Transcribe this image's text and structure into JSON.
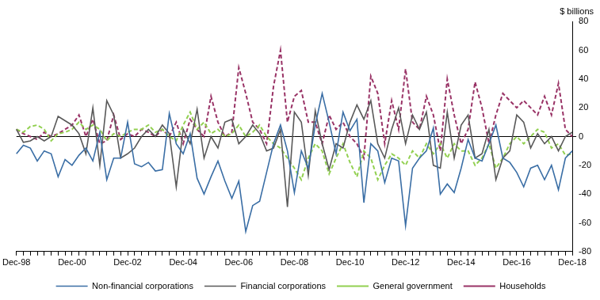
{
  "chart_data": {
    "type": "line",
    "y_label": "$ billions",
    "categories": [
      "Dec-98",
      null,
      null,
      null,
      null,
      null,
      null,
      null,
      "Dec-00",
      null,
      null,
      null,
      null,
      null,
      null,
      null,
      "Dec-02",
      null,
      null,
      null,
      null,
      null,
      null,
      null,
      "Dec-04",
      null,
      null,
      null,
      null,
      null,
      null,
      null,
      "Dec-06",
      null,
      null,
      null,
      null,
      null,
      null,
      null,
      "Dec-08",
      null,
      null,
      null,
      null,
      null,
      null,
      null,
      "Dec-10",
      null,
      null,
      null,
      null,
      null,
      null,
      null,
      "Dec-12",
      null,
      null,
      null,
      null,
      null,
      null,
      null,
      "Dec-14",
      null,
      null,
      null,
      null,
      null,
      null,
      null,
      "Dec-16",
      null,
      null,
      null,
      null,
      null,
      null,
      null,
      "Dec-18"
    ],
    "series": [
      {
        "name": "Non-financial corporations",
        "color": "#3a6ea5",
        "line_style": "solid",
        "values": [
          -12,
          -6,
          -8,
          -17,
          -10,
          -12,
          -28,
          -16,
          -20,
          -13,
          -8,
          -17,
          3,
          -30,
          -15,
          -15,
          10,
          -19,
          -21,
          -18,
          -24,
          -23,
          16,
          -5,
          -12,
          2,
          -29,
          -40,
          -28,
          -17,
          -31,
          -43,
          -31,
          -66,
          -48,
          -45,
          -25,
          -5,
          8,
          -10,
          -39,
          -10,
          -22,
          8,
          30,
          10,
          -12,
          17,
          4,
          12,
          -46,
          -5,
          -10,
          -32,
          -15,
          -17,
          -62,
          -22,
          -15,
          -10,
          6,
          -40,
          -33,
          -39,
          -22,
          -2,
          -15,
          -17,
          -5,
          8,
          -15,
          -18,
          -25,
          -35,
          -22,
          -20,
          -30,
          -20,
          -37,
          -15,
          -10
        ]
      },
      {
        "name": "Financial corporations",
        "color": "#595959",
        "line_style": "solid",
        "values": [
          5,
          -4,
          -3,
          0,
          -3,
          0,
          14,
          11,
          8,
          2,
          -12,
          20,
          -20,
          25,
          15,
          -15,
          -12,
          -8,
          0,
          5,
          0,
          8,
          2,
          -35,
          5,
          -5,
          19,
          -15,
          0,
          -8,
          10,
          12,
          -5,
          0,
          8,
          2,
          -10,
          -8,
          5,
          -49,
          17,
          10,
          -27,
          18,
          -5,
          -23,
          -5,
          -8,
          10,
          22,
          12,
          25,
          -5,
          -15,
          5,
          20,
          -5,
          15,
          5,
          17,
          -20,
          -22,
          17,
          -15,
          8,
          15,
          -15,
          -12,
          5,
          -30,
          -15,
          -10,
          15,
          10,
          -8,
          2,
          -5,
          0,
          -10,
          0,
          3
        ]
      },
      {
        "name": "General government",
        "color": "#92d050",
        "line_style": "dashed",
        "values": [
          5,
          3,
          7,
          8,
          5,
          -3,
          2,
          3,
          5,
          10,
          5,
          8,
          5,
          -3,
          2,
          0,
          3,
          5,
          5,
          8,
          3,
          5,
          0,
          -3,
          8,
          17,
          5,
          10,
          2,
          5,
          0,
          2,
          8,
          0,
          3,
          8,
          0,
          -5,
          -8,
          -15,
          -22,
          -30,
          -15,
          -5,
          -10,
          -26,
          -15,
          -5,
          -18,
          -28,
          -10,
          -15,
          -30,
          -20,
          -12,
          -15,
          -20,
          -10,
          -15,
          -5,
          -12,
          -5,
          -15,
          -5,
          -10,
          -10,
          -20,
          -15,
          -5,
          -22,
          -15,
          -5,
          0,
          -5,
          0,
          5,
          3,
          -8,
          -5,
          -13,
          -12
        ]
      },
      {
        "name": "Households",
        "color": "#993366",
        "line_style": "dashed",
        "values": [
          5,
          2,
          0,
          -2,
          3,
          0,
          2,
          5,
          8,
          15,
          0,
          12,
          -5,
          -3,
          15,
          -2,
          2,
          0,
          5,
          3,
          0,
          5,
          0,
          10,
          -5,
          12,
          5,
          0,
          28,
          10,
          0,
          3,
          48,
          30,
          10,
          5,
          -5,
          35,
          60,
          10,
          28,
          32,
          10,
          10,
          -5,
          15,
          5,
          10,
          0,
          -5,
          -15,
          42,
          30,
          -5,
          25,
          5,
          47,
          10,
          5,
          28,
          15,
          -10,
          40,
          15,
          -5,
          5,
          38,
          20,
          -5,
          15,
          30,
          25,
          20,
          25,
          20,
          15,
          28,
          15,
          37,
          5,
          0
        ]
      }
    ],
    "ylim": [
      -80,
      80
    ],
    "yticks": [
      -80,
      -60,
      -40,
      -20,
      0,
      20,
      40,
      60,
      80
    ],
    "grid": false,
    "legend": "bottom"
  }
}
